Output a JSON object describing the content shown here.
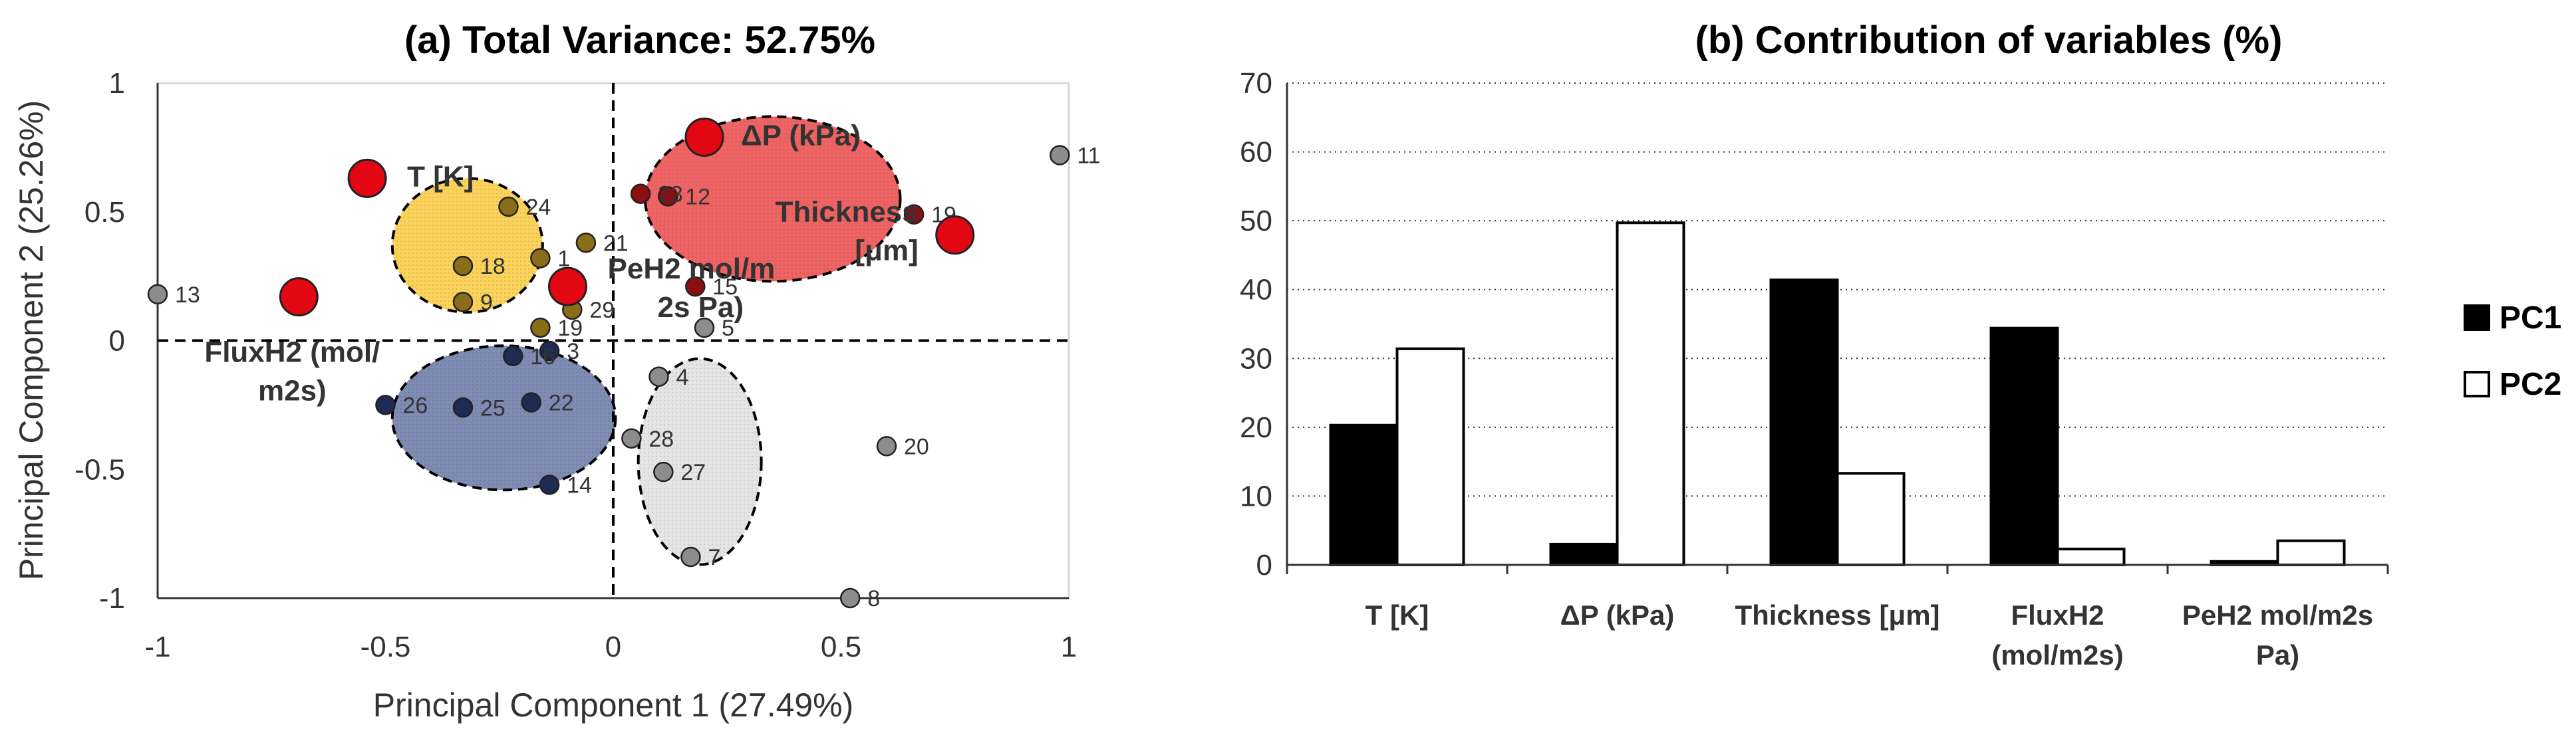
{
  "chart_data": [
    {
      "type": "scatter",
      "title": "(a) Total Variance: 52.75%",
      "xlabel": "Principal Component 1 (27.49%)",
      "ylabel": "Principal Component 2 (25.26%)",
      "xlim": [
        -1,
        1
      ],
      "ylim": [
        -1,
        1
      ],
      "x_ticks": [
        "-1",
        "-0.5",
        "0",
        "0.5",
        "1"
      ],
      "y_ticks": [
        "-1",
        "-0.5",
        "0",
        "0.5",
        "1"
      ],
      "clusters": [
        {
          "name": "yellow",
          "color": "#fbd35c",
          "center": [
            -0.32,
            0.37
          ],
          "radius": [
            0.165,
            0.26
          ]
        },
        {
          "name": "red",
          "color": "#ee6464",
          "center": [
            0.35,
            0.55
          ],
          "radius": [
            0.28,
            0.32
          ]
        },
        {
          "name": "blue",
          "color": "#7e8bb3",
          "center": [
            -0.24,
            -0.3
          ],
          "radius": [
            0.245,
            0.28
          ]
        },
        {
          "name": "gray",
          "color": "#e4e4e4",
          "center": [
            0.19,
            -0.47
          ],
          "radius": [
            0.135,
            0.4
          ]
        }
      ],
      "observations": [
        {
          "label": "1",
          "x": -0.16,
          "y": 0.32,
          "group": "yellow"
        },
        {
          "label": "3",
          "x": -0.14,
          "y": -0.04,
          "group": "blue"
        },
        {
          "label": "4",
          "x": 0.1,
          "y": -0.14,
          "group": "gray"
        },
        {
          "label": "5",
          "x": 0.2,
          "y": 0.05,
          "group": "none"
        },
        {
          "label": "7",
          "x": 0.17,
          "y": -0.84,
          "group": "gray"
        },
        {
          "label": "8",
          "x": 0.52,
          "y": -1.0,
          "group": "none"
        },
        {
          "label": "9",
          "x": -0.33,
          "y": 0.15,
          "group": "yellow"
        },
        {
          "label": "11",
          "x": 0.98,
          "y": 0.72,
          "group": "none"
        },
        {
          "label": "12",
          "x": 0.12,
          "y": 0.56,
          "group": "red"
        },
        {
          "label": "13",
          "x": -1.0,
          "y": 0.18,
          "group": "none"
        },
        {
          "label": "14",
          "x": -0.14,
          "y": -0.56,
          "group": "blue"
        },
        {
          "label": "15",
          "x": 0.18,
          "y": 0.21,
          "group": "red"
        },
        {
          "label": "16",
          "x": -0.22,
          "y": -0.06,
          "group": "blue"
        },
        {
          "label": "18",
          "x": -0.33,
          "y": 0.29,
          "group": "yellow"
        },
        {
          "label": "19",
          "x": 0.66,
          "y": 0.49,
          "group": "red"
        },
        {
          "label": "19",
          "x": -0.16,
          "y": 0.05,
          "group": "yellow"
        },
        {
          "label": "20",
          "x": 0.6,
          "y": -0.41,
          "group": "none"
        },
        {
          "label": "21",
          "x": -0.06,
          "y": 0.38,
          "group": "yellow"
        },
        {
          "label": "22",
          "x": -0.18,
          "y": -0.24,
          "group": "blue"
        },
        {
          "label": "23",
          "x": 0.06,
          "y": 0.57,
          "group": "red"
        },
        {
          "label": "24",
          "x": -0.23,
          "y": 0.52,
          "group": "yellow"
        },
        {
          "label": "25",
          "x": -0.33,
          "y": -0.26,
          "group": "blue"
        },
        {
          "label": "26",
          "x": -0.5,
          "y": -0.25,
          "group": "blue"
        },
        {
          "label": "27",
          "x": 0.11,
          "y": -0.51,
          "group": "gray"
        },
        {
          "label": "28",
          "x": 0.04,
          "y": -0.38,
          "group": "gray"
        },
        {
          "label": "29",
          "x": -0.09,
          "y": 0.12,
          "group": "yellow"
        }
      ],
      "variables": [
        {
          "label": "T [K]",
          "x": -0.54,
          "y": 0.63
        },
        {
          "label": "ΔP (kPa)",
          "x": 0.2,
          "y": 0.79
        },
        {
          "label": "Thickness [μm]",
          "x": 0.75,
          "y": 0.41
        },
        {
          "label": "FluxH2 (mol/m2s)",
          "x": -0.69,
          "y": 0.17
        },
        {
          "label": "PeH2 mol/m2s Pa)",
          "x": -0.1,
          "y": 0.21
        }
      ],
      "variable_text_lines": [
        [
          "T [K]"
        ],
        [
          "ΔP (kPa)"
        ],
        [
          "Thickness",
          "[μm]"
        ],
        [
          "FluxH2 (mol/",
          "m2s)"
        ],
        [
          "PeH2 mol/m",
          "2s Pa)"
        ]
      ]
    },
    {
      "type": "bar",
      "title": "(b) Contribution of variables (%)",
      "categories": [
        "T [K]",
        "ΔP (kPa)",
        "Thickness [μm]",
        "FluxH2 (mol/m2s)",
        "PeH2 mol/m2s Pa)"
      ],
      "category_lines": [
        [
          "T [K]"
        ],
        [
          "ΔP (kPa)"
        ],
        [
          "Thickness [μm]"
        ],
        [
          "FluxH2",
          "(mol/m2s)"
        ],
        [
          "PeH2 mol/m2s",
          "Pa)"
        ]
      ],
      "series": [
        {
          "name": "PC1",
          "values": [
            20.3,
            3.0,
            41.4,
            34.4,
            0.5
          ],
          "fill": "#000000"
        },
        {
          "name": "PC2",
          "values": [
            31.4,
            49.7,
            13.3,
            2.3,
            3.5
          ],
          "fill": "#ffffff"
        }
      ],
      "ylim": [
        0,
        70
      ],
      "y_ticks": [
        "0",
        "10",
        "20",
        "30",
        "40",
        "50",
        "60",
        "70"
      ],
      "xlabel": "",
      "ylabel": "",
      "legend_position": "right"
    }
  ]
}
